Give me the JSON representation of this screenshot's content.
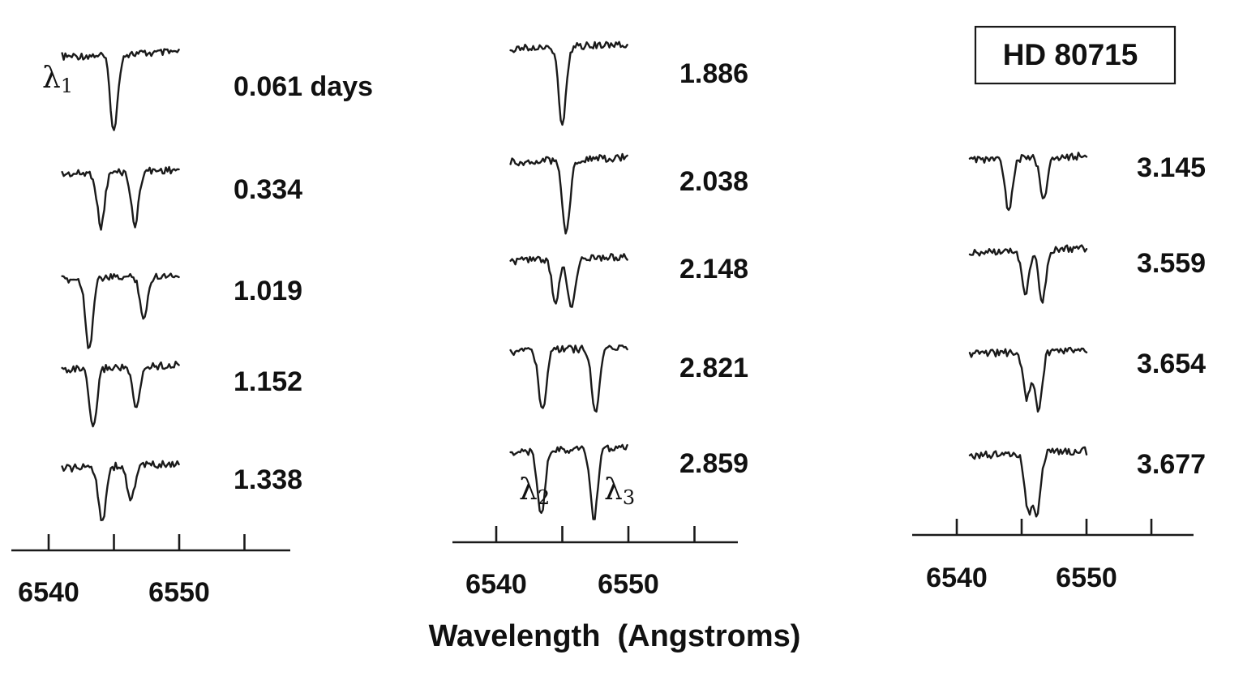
{
  "chart_data": {
    "type": "line",
    "title": "HD 80715",
    "xlabel": "Wavelength  (Angstroms)",
    "x_tick_labels": [
      "6540",
      "6550"
    ],
    "xlim": [
      6538,
      6557
    ],
    "time_unit_label": "days",
    "line_labels": [
      "λ1",
      "λ2",
      "λ3"
    ],
    "panels": [
      {
        "spectra": [
          {
            "time": "0.061",
            "lines": [
              {
                "center": 6545.0,
                "depth": 1.0
              }
            ]
          },
          {
            "time": "0.334",
            "lines": [
              {
                "center": 6544.0,
                "depth": 0.7
              },
              {
                "center": 6546.6,
                "depth": 0.7
              }
            ]
          },
          {
            "time": "1.019",
            "lines": [
              {
                "center": 6543.1,
                "depth": 0.9
              },
              {
                "center": 6547.3,
                "depth": 0.55
              }
            ]
          },
          {
            "time": "1.152",
            "lines": [
              {
                "center": 6543.4,
                "depth": 0.8
              },
              {
                "center": 6546.7,
                "depth": 0.55
              }
            ]
          },
          {
            "time": "1.338",
            "lines": [
              {
                "center": 6544.1,
                "depth": 0.7
              },
              {
                "center": 6546.3,
                "depth": 0.45
              }
            ]
          }
        ]
      },
      {
        "spectra": [
          {
            "time": "1.886",
            "lines": [
              {
                "center": 6545.0,
                "depth": 1.0
              }
            ]
          },
          {
            "time": "2.038",
            "lines": [
              {
                "center": 6545.3,
                "depth": 0.95
              }
            ]
          },
          {
            "time": "2.148",
            "lines": [
              {
                "center": 6544.5,
                "depth": 0.55
              },
              {
                "center": 6545.7,
                "depth": 0.65
              }
            ]
          },
          {
            "time": "2.821",
            "lines": [
              {
                "center": 6543.5,
                "depth": 0.8
              },
              {
                "center": 6547.5,
                "depth": 0.85
              }
            ]
          },
          {
            "time": "2.859",
            "lines": [
              {
                "center": 6543.4,
                "depth": 0.85
              },
              {
                "center": 6547.4,
                "depth": 0.9
              }
            ]
          }
        ]
      },
      {
        "spectra": [
          {
            "time": "3.145",
            "lines": [
              {
                "center": 6544.0,
                "depth": 0.65
              },
              {
                "center": 6546.7,
                "depth": 0.55
              }
            ]
          },
          {
            "time": "3.559",
            "lines": [
              {
                "center": 6545.3,
                "depth": 0.55
              },
              {
                "center": 6546.6,
                "depth": 0.65
              }
            ]
          },
          {
            "time": "3.654",
            "lines": [
              {
                "center": 6545.4,
                "depth": 0.6
              },
              {
                "center": 6546.3,
                "depth": 0.75
              }
            ]
          },
          {
            "time": "3.677",
            "lines": [
              {
                "center": 6545.5,
                "depth": 0.75
              },
              {
                "center": 6546.2,
                "depth": 0.75
              }
            ]
          }
        ]
      }
    ]
  }
}
